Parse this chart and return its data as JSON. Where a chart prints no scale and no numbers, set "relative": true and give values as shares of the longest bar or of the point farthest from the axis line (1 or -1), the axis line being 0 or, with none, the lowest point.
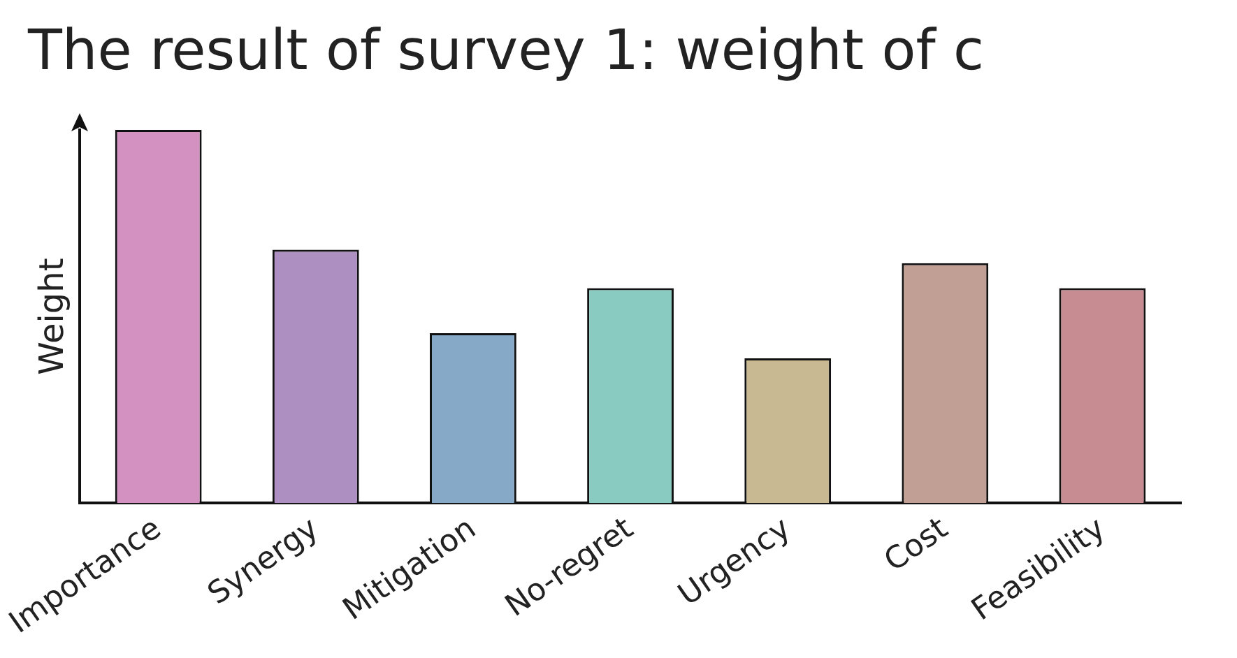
{
  "chart_data": {
    "type": "bar",
    "title": "The result of survey 1: weight of c",
    "ylabel": "Weight",
    "relative": true,
    "categories": [
      "Importance",
      "Synergy",
      "Mitigation",
      "No-regret",
      "Urgency",
      "Cost",
      "Feasibility"
    ],
    "values": [
      1,
      0.679,
      0.455,
      0.576,
      0.388,
      0.643,
      0.576
    ],
    "colors": [
      "#d291c0",
      "#ae8fc2",
      "#87a9c8",
      "#89cbc0",
      "#c8b993",
      "#c29f95",
      "#c68c91"
    ],
    "grid": false,
    "legend": false
  }
}
